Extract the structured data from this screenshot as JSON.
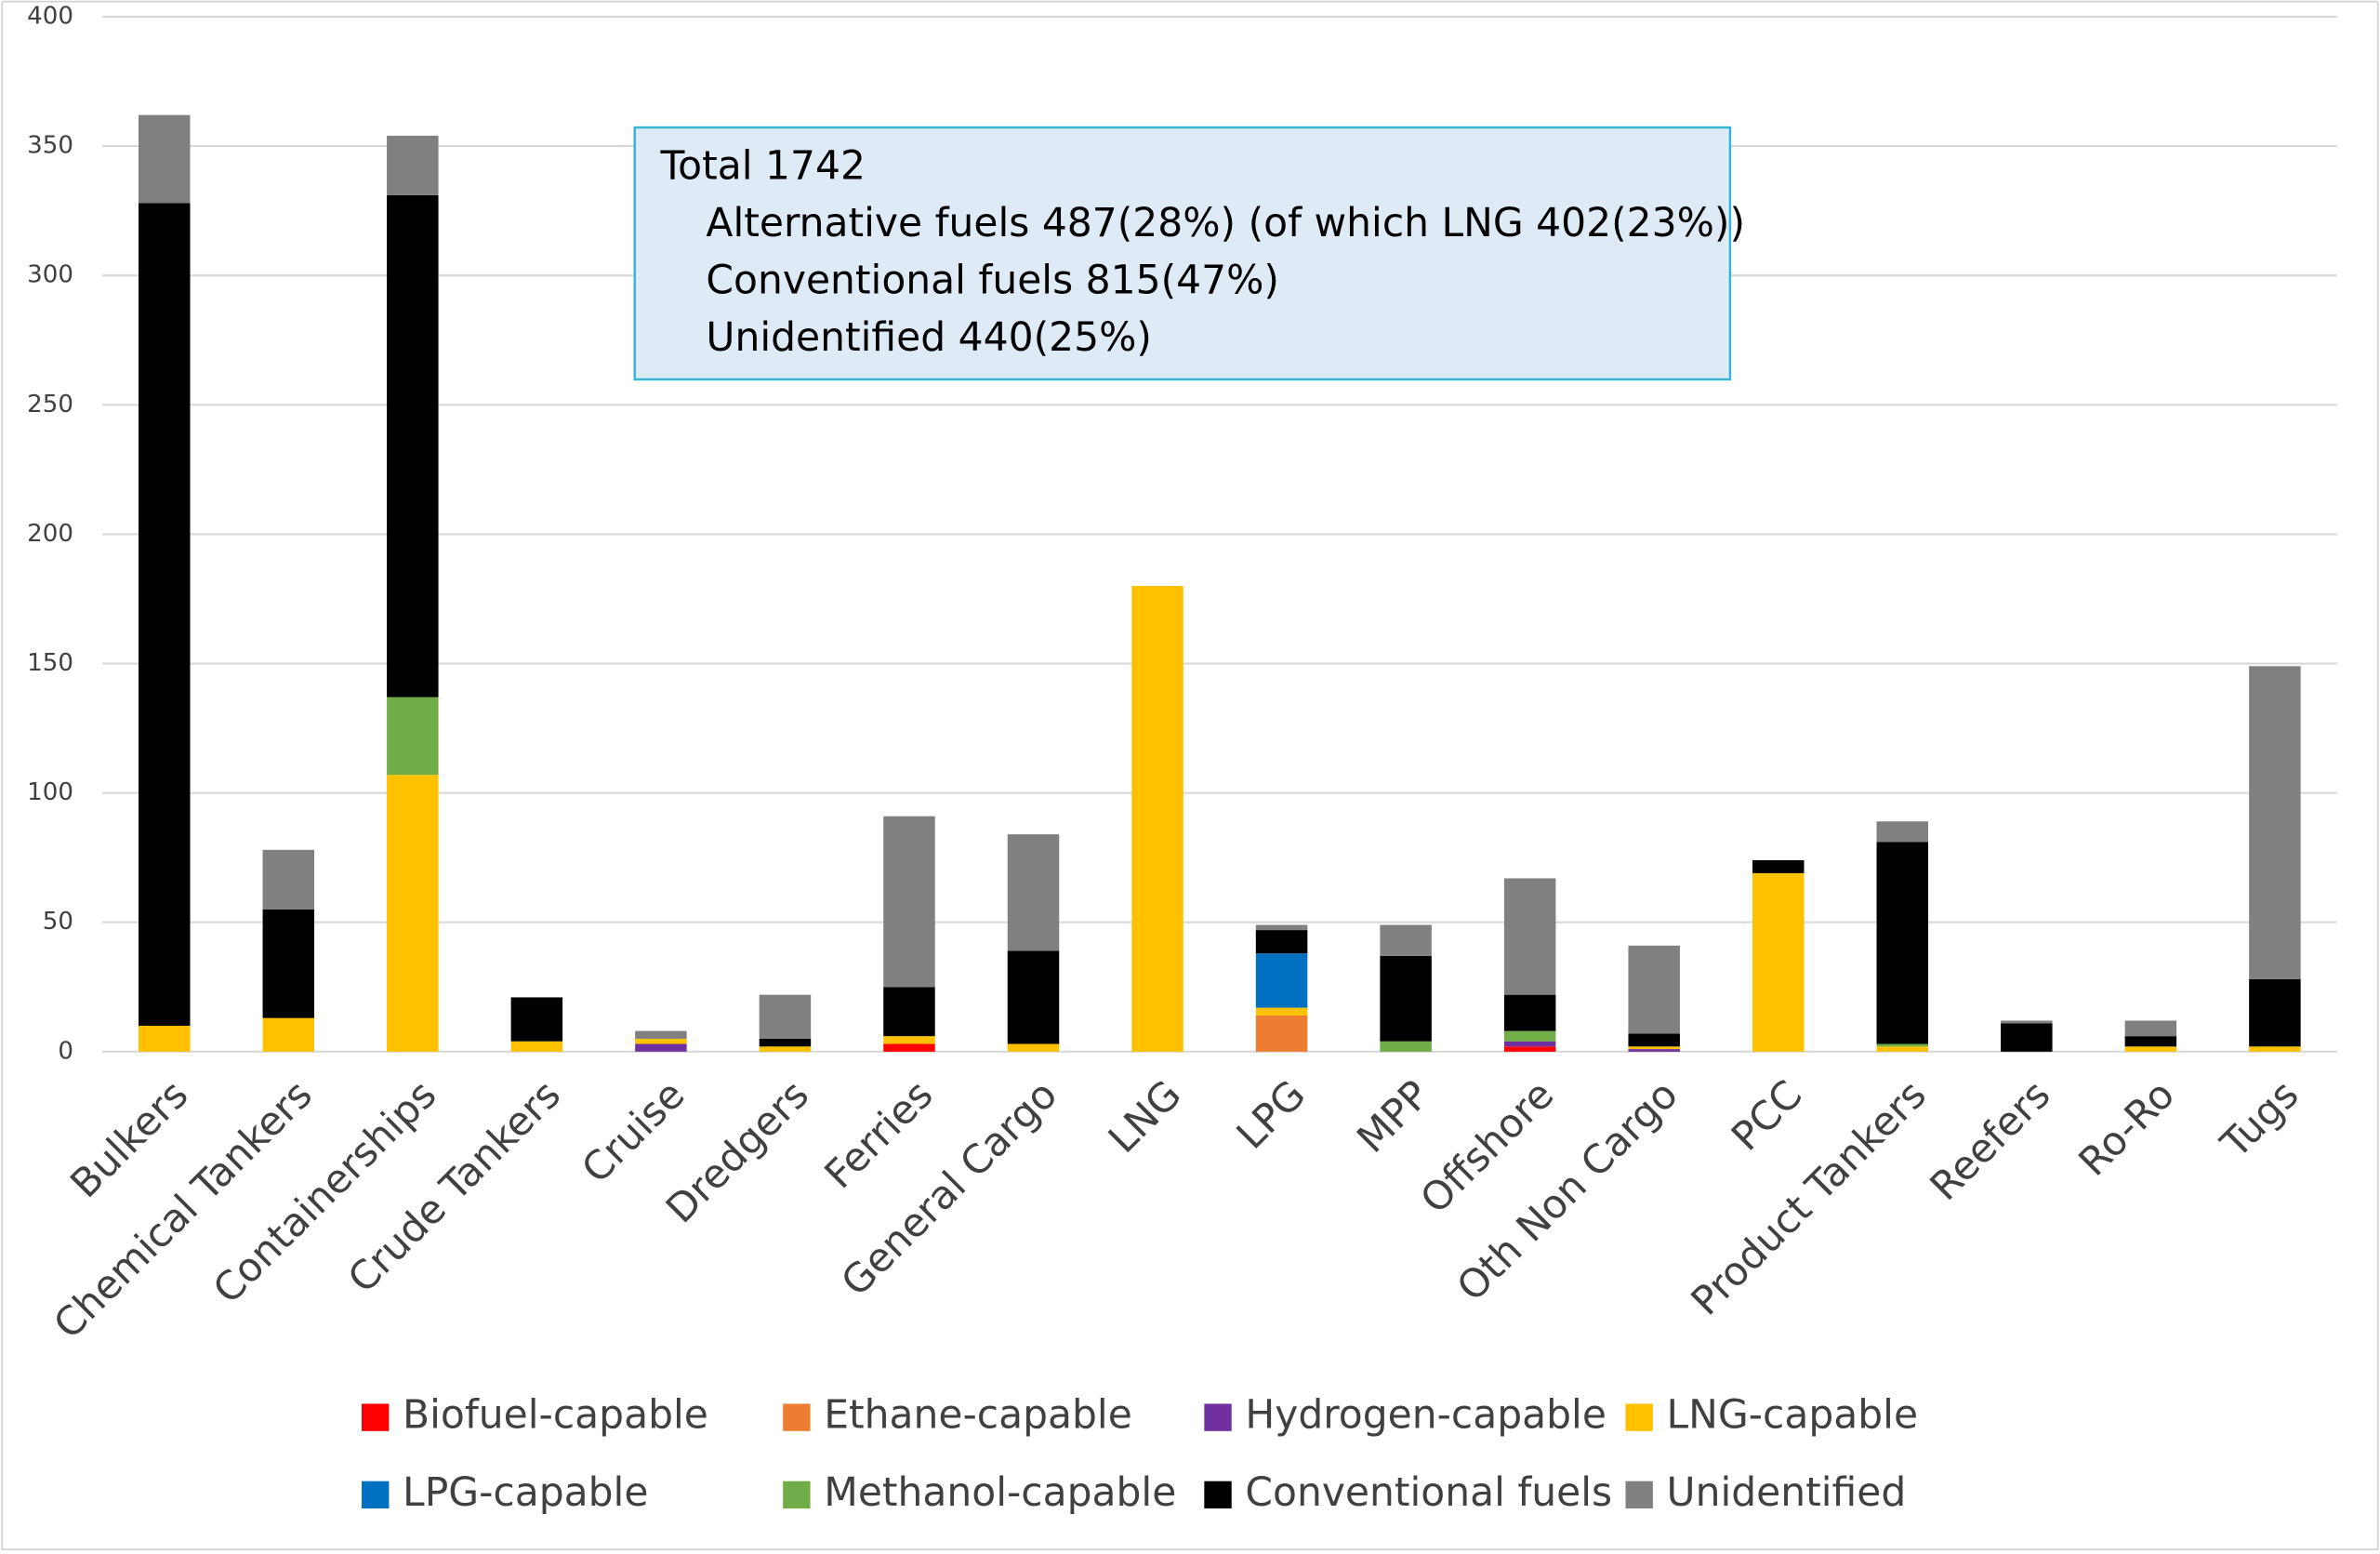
{
  "chart_data": {
    "type": "stacked_bar",
    "categories": [
      "Bulkers",
      "Chemical Tankers",
      "Containerships",
      "Crude Tankers",
      "Cruise",
      "Dredgers",
      "Ferries",
      "General Cargo",
      "LNG",
      "LPG",
      "MPP",
      "Offshore",
      "Oth Non Cargo",
      "PCC",
      "Product Tankers",
      "Reefers",
      "Ro-Ro",
      "Tugs"
    ],
    "series": [
      {
        "name": "Biofuel-capable",
        "color": "#ff0000",
        "values": [
          0,
          0,
          0,
          0,
          0,
          0,
          3,
          0,
          0,
          0,
          0,
          2,
          0,
          0,
          0,
          0,
          0,
          0
        ]
      },
      {
        "name": "Ethane-capable",
        "color": "#ed7d31",
        "values": [
          0,
          0,
          0,
          0,
          0,
          0,
          0,
          0,
          0,
          14,
          0,
          0,
          0,
          0,
          0,
          0,
          0,
          0
        ]
      },
      {
        "name": "Hydrogen-capable",
        "color": "#7030a0",
        "values": [
          0,
          0,
          0,
          0,
          3,
          0,
          0,
          0,
          0,
          0,
          0,
          2,
          1,
          0,
          0,
          0,
          0,
          0
        ]
      },
      {
        "name": "LNG-capable",
        "color": "#ffc000",
        "values": [
          10,
          13,
          107,
          4,
          2,
          2,
          3,
          3,
          180,
          3,
          0,
          0,
          1,
          69,
          2,
          0,
          2,
          2
        ]
      },
      {
        "name": "LPG-capable",
        "color": "#0070c0",
        "values": [
          0,
          0,
          0,
          0,
          0,
          0,
          0,
          0,
          0,
          21,
          0,
          0,
          0,
          0,
          0,
          0,
          0,
          0
        ]
      },
      {
        "name": "Methanol-capable",
        "color": "#70ad47",
        "values": [
          0,
          0,
          30,
          0,
          0,
          0,
          0,
          0,
          0,
          0,
          4,
          4,
          0,
          0,
          1,
          0,
          0,
          0
        ]
      },
      {
        "name": "Conventional fuels",
        "color": "#000000",
        "values": [
          318,
          42,
          194,
          17,
          0,
          3,
          19,
          36,
          0,
          9,
          33,
          14,
          5,
          5,
          78,
          11,
          4,
          26
        ]
      },
      {
        "name": "Unidentified",
        "color": "#808080",
        "values": [
          34,
          23,
          23,
          0,
          3,
          17,
          66,
          45,
          0,
          2,
          12,
          45,
          34,
          0,
          8,
          1,
          6,
          121
        ]
      }
    ],
    "ylim": [
      0,
      400
    ],
    "yticks": [
      0,
      50,
      100,
      150,
      200,
      250,
      300,
      350,
      400
    ],
    "grid": true,
    "annotation": [
      "Total 1742",
      "Alternative fuels 487(28%) (of which LNG 402(23%))",
      "Conventional fuels 815(47%)",
      "Unidentified 440(25%)"
    ]
  }
}
